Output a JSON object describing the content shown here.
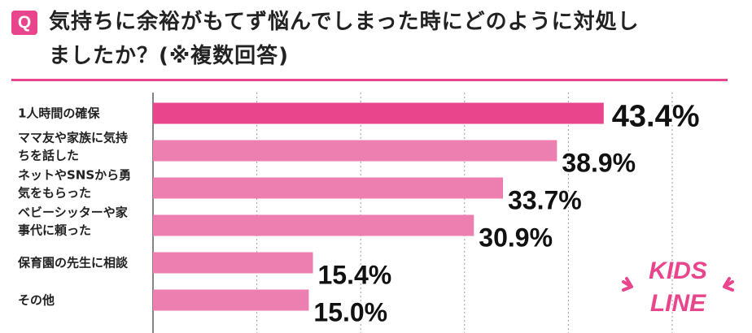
{
  "question": {
    "badge": "Q",
    "title_line1": "気持ちに余裕がもてず悩んでしまった時にどのように対処し",
    "title_line2": "ましたか？(※複数回答)"
  },
  "colors": {
    "accent": "#e8458d",
    "bar": "#ec7fb0",
    "title_text": "#222222",
    "value_text": "#111111",
    "grid": "#999999"
  },
  "logo": {
    "text_top": "KIDS",
    "text_bottom": "LINE"
  },
  "chart_data": {
    "type": "bar",
    "orientation": "horizontal",
    "title": "気持ちに余裕がもてず悩んでしまった時にどのように対処しましたか？(※複数回答)",
    "categories": [
      [
        "1人時間の確保"
      ],
      [
        "ママ友や家族に気持",
        "ちを話した"
      ],
      [
        "ネットやSNSから勇",
        "気をもらった"
      ],
      [
        "ベビーシッターや家",
        "事代に頼った"
      ],
      [
        "保育園の先生に相談"
      ],
      [
        "その他"
      ]
    ],
    "values": [
      43.4,
      38.9,
      33.7,
      30.9,
      15.4,
      15.0
    ],
    "value_labels": [
      "43.4%",
      "38.9%",
      "33.7%",
      "30.9%",
      "15.4%",
      "15.0%"
    ],
    "highlight_index": 0,
    "xlim": [
      0,
      50
    ],
    "grid_ticks": [
      10,
      20,
      30,
      40,
      50
    ],
    "grid": true,
    "unit": "%"
  }
}
